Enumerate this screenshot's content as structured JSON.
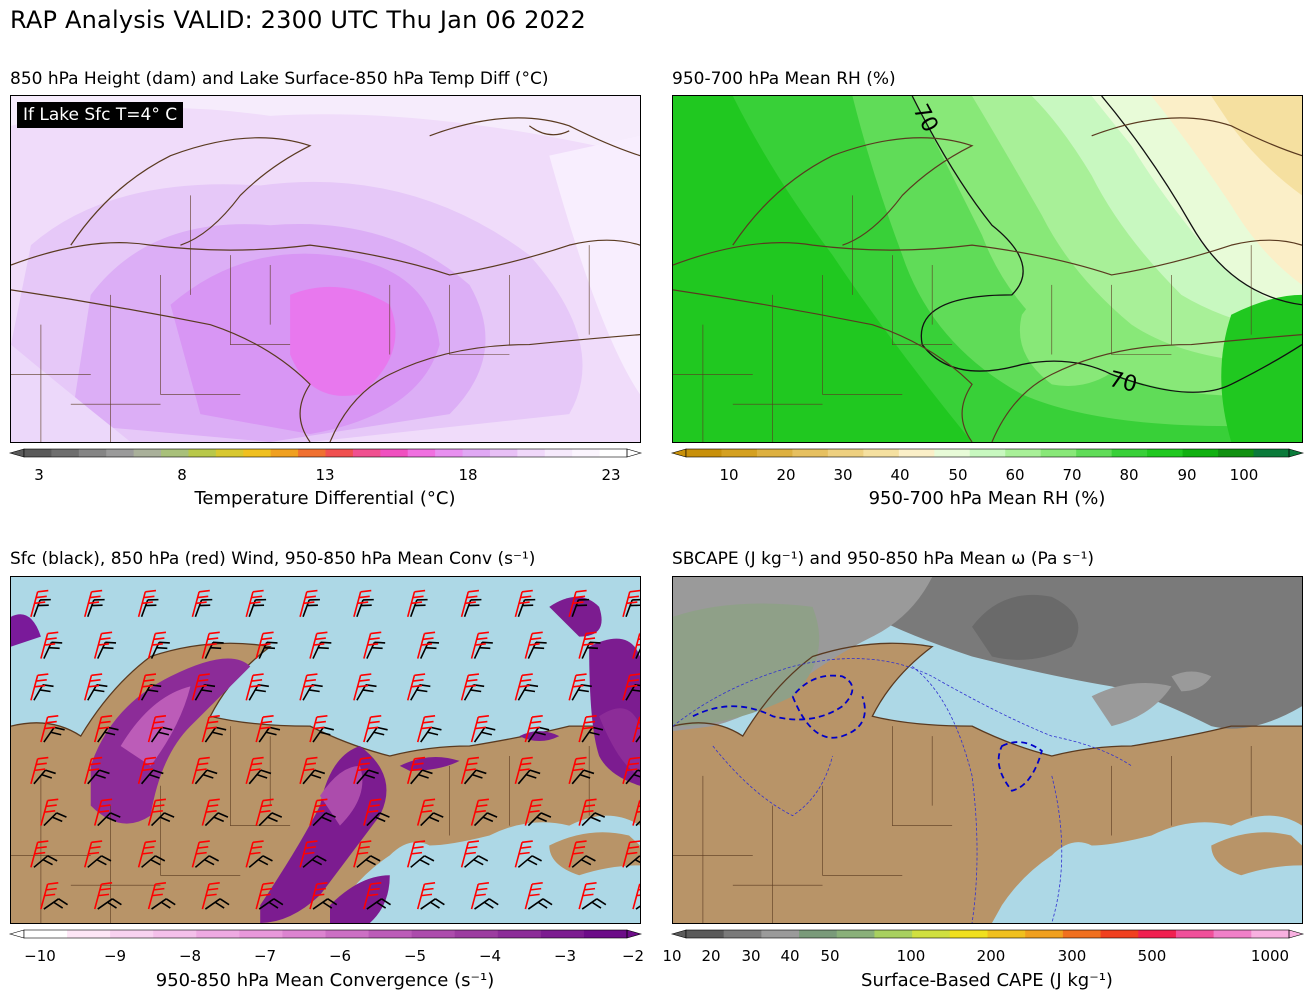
{
  "header": {
    "title": "RAP Analysis VALID: 2300 UTC Thu Jan 06 2022"
  },
  "panels": [
    {
      "title": "850 hPa Height (dam) and Lake Surface-850 hPa Temp Diff (°C)",
      "inset_label": "If Lake Sfc T=4° C",
      "colorbar": {
        "label": "Temperature Differential (°C)",
        "ticks": [
          "3",
          "8",
          "13",
          "18",
          "23"
        ],
        "colors": [
          "#5a5a5a",
          "#6e6e6e",
          "#858585",
          "#9a9a9a",
          "#a9b09a",
          "#a8c07a",
          "#b8c84a",
          "#d8c830",
          "#f0c020",
          "#f0a020",
          "#f07030",
          "#f05050",
          "#f05090",
          "#f050c0",
          "#f070e0",
          "#e890f0",
          "#e0a8f4",
          "#e8c0f6",
          "#f0d8fa",
          "#f6eafc",
          "#fbf5fe",
          "#ffffff"
        ]
      }
    },
    {
      "title": "950-700 hPa Mean RH (%)",
      "contour_labels": [
        "70",
        "70"
      ],
      "colorbar": {
        "label": "950-700 hPa Mean RH (%)",
        "ticks": [
          "10",
          "20",
          "30",
          "40",
          "50",
          "60",
          "70",
          "80",
          "90",
          "100"
        ],
        "colors": [
          "#c8900a",
          "#d4a020",
          "#ddb040",
          "#e6c060",
          "#eed080",
          "#f5e0a0",
          "#fbefc8",
          "#e8fbd8",
          "#c8f8c0",
          "#a8f098",
          "#88e878",
          "#60dc58",
          "#38d038",
          "#20c820",
          "#10b010",
          "#109010",
          "#0a7a3a"
        ]
      }
    },
    {
      "title": "Sfc (black), 850 hPa (red) Wind, 950-850 hPa Mean Conv (s⁻¹)",
      "colorbar": {
        "label": "950-850 hPa Mean Convergence (s⁻¹)",
        "ticks": [
          "−10",
          "−9",
          "−8",
          "−7",
          "−6",
          "−5",
          "−4",
          "−3",
          "−2"
        ],
        "colors": [
          "#ffffff",
          "#fde6f6",
          "#f8d2f0",
          "#f4c0ea",
          "#eeaae2",
          "#e898da",
          "#dc84d0",
          "#cc70c4",
          "#bc5cb8",
          "#ac4cac",
          "#9c3ca0",
          "#8c2c98",
          "#7c1c90",
          "#6c0c88"
        ]
      }
    },
    {
      "title": "SBCAPE (J kg⁻¹) and 950-850 hPa Mean ω (Pa s⁻¹)",
      "colorbar": {
        "label": "Surface-Based CAPE (J kg⁻¹)",
        "ticks": [
          "10",
          "20",
          "30",
          "40",
          "50",
          "100",
          "200",
          "300",
          "500",
          "1000"
        ],
        "colors": [
          "#5a5a5a",
          "#7a7a7a",
          "#9a9a9a",
          "#7a9a7a",
          "#8ab07a",
          "#a8d060",
          "#d0e040",
          "#f0e020",
          "#f0c020",
          "#f0a020",
          "#f07020",
          "#f04020",
          "#f02050",
          "#f0509a",
          "#f080c8",
          "#f8b0e0"
        ]
      }
    }
  ]
}
